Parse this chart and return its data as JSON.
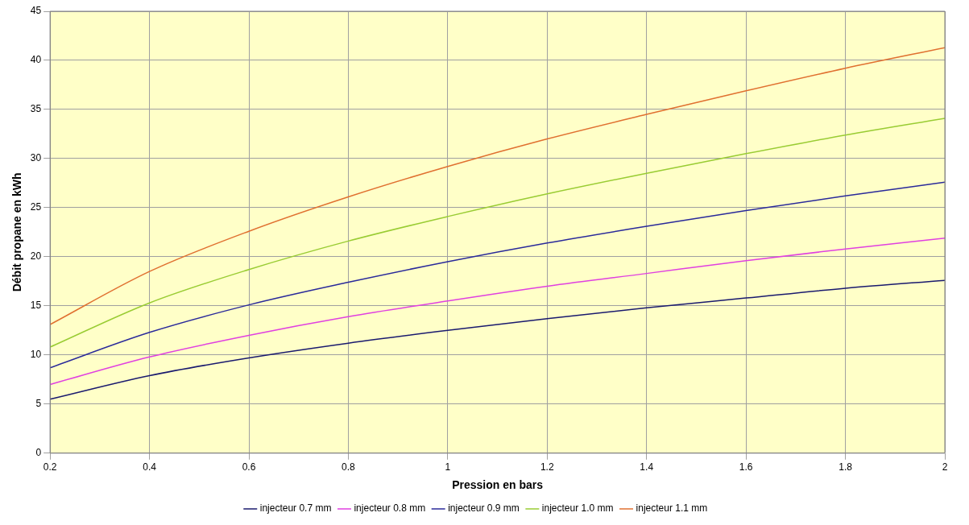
{
  "chart_data": {
    "type": "line",
    "xlabel": "Pression en bars",
    "ylabel": "Débit propane en kWh",
    "x": [
      0.2,
      0.4,
      0.6,
      0.8,
      1,
      1.2,
      1.4,
      1.6,
      1.8,
      2
    ],
    "series": [
      {
        "name": "injecteur 0.7 mm",
        "color": "#1a1a6e",
        "values": [
          5.5,
          7.9,
          9.7,
          11.2,
          12.5,
          13.7,
          14.8,
          15.8,
          16.8,
          17.6
        ]
      },
      {
        "name": "injecteur 0.8 mm",
        "color": "#e040e0",
        "values": [
          7.0,
          9.8,
          12.0,
          13.9,
          15.5,
          17.0,
          18.3,
          19.6,
          20.8,
          21.9
        ]
      },
      {
        "name": "injecteur 0.9 mm",
        "color": "#2a2a9a",
        "values": [
          8.7,
          12.3,
          15.1,
          17.4,
          19.5,
          21.4,
          23.1,
          24.7,
          26.2,
          27.6
        ]
      },
      {
        "name": "injecteur 1.0 mm",
        "color": "#99cc33",
        "values": [
          10.8,
          15.3,
          18.7,
          21.6,
          24.1,
          26.4,
          28.5,
          30.5,
          32.4,
          34.1
        ]
      },
      {
        "name": "injecteur 1.1 mm",
        "color": "#e07030",
        "values": [
          13.1,
          18.5,
          22.6,
          26.1,
          29.2,
          32.0,
          34.5,
          36.9,
          39.2,
          41.3
        ]
      }
    ],
    "xlim": [
      0.2,
      2
    ],
    "xticks": [
      0.2,
      0.4,
      0.6,
      0.8,
      1,
      1.2,
      1.4,
      1.6,
      1.8,
      2
    ],
    "ylim": [
      0,
      45
    ],
    "yticks": [
      0,
      5,
      10,
      15,
      20,
      25,
      30,
      35,
      40,
      45
    ],
    "grid": true,
    "legend": "bottom",
    "marker": "none",
    "line_style": "solid"
  }
}
